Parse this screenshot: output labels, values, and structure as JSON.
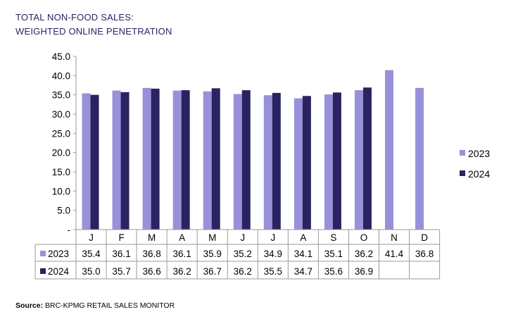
{
  "title_line1": "TOTAL NON-FOOD SALES:",
  "title_line2": "WEIGHTED ONLINE PENETRATION",
  "source_label": "Source:",
  "source_text": "BRC-KPMG RETAIL SALES MONITOR",
  "colors": {
    "s2023": "#9891d9",
    "s2024": "#2a2361",
    "title": "#2b2364",
    "grid": "#9a9a9a"
  },
  "chart_data": {
    "type": "bar",
    "title": "TOTAL NON-FOOD SALES: WEIGHTED ONLINE PENETRATION",
    "categories": [
      "J",
      "F",
      "M",
      "A",
      "M",
      "J",
      "J",
      "A",
      "S",
      "O",
      "N",
      "D"
    ],
    "ylim": [
      0,
      45
    ],
    "yticks": [
      0,
      5,
      10,
      15,
      20,
      25,
      30,
      35,
      40,
      45
    ],
    "ytick_labels": [
      "-",
      "5.0",
      "10.0",
      "15.0",
      "20.0",
      "25.0",
      "30.0",
      "35.0",
      "40.0",
      "45.0"
    ],
    "grid": false,
    "legend": "right",
    "data_table": true,
    "series": [
      {
        "name": "2023",
        "values": [
          35.4,
          36.1,
          36.8,
          36.1,
          35.9,
          35.2,
          34.9,
          34.1,
          35.1,
          36.2,
          41.4,
          36.8
        ],
        "labels": [
          "35.4",
          "36.1",
          "36.8",
          "36.1",
          "35.9",
          "35.2",
          "34.9",
          "34.1",
          "35.1",
          "36.2",
          "41.4",
          "36.8"
        ]
      },
      {
        "name": "2024",
        "values": [
          35.0,
          35.7,
          36.6,
          36.2,
          36.7,
          36.2,
          35.5,
          34.7,
          35.6,
          36.9,
          null,
          null
        ],
        "labels": [
          "35.0",
          "35.7",
          "36.6",
          "36.2",
          "36.7",
          "36.2",
          "35.5",
          "34.7",
          "35.6",
          "36.9",
          "",
          ""
        ]
      }
    ]
  }
}
